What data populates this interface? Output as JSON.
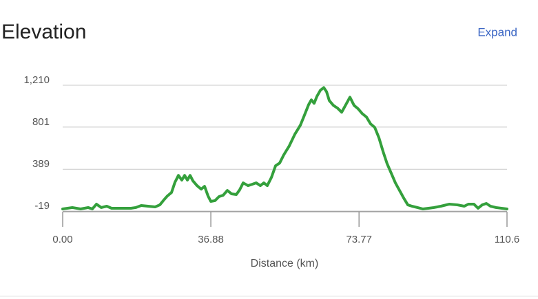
{
  "header": {
    "title": "Elevation",
    "action": "Expand"
  },
  "chart_data": {
    "type": "line",
    "x_label": "Distance (km)",
    "x": [
      0,
      2.4,
      4.46,
      6.34,
      7.37,
      8.4,
      9.6,
      10.97,
      12.17,
      14.4,
      16.98,
      18.18,
      19.55,
      21.26,
      22.98,
      24.18,
      25.03,
      26.06,
      27.09,
      27.95,
      28.81,
      29.66,
      30.35,
      31.04,
      31.72,
      32.41,
      33.44,
      34.47,
      35.32,
      36.18,
      36.87,
      37.9,
      38.92,
      39.95,
      40.98,
      42.01,
      43.21,
      44.07,
      44.93,
      46.13,
      47.16,
      48.18,
      49.21,
      50.07,
      50.93,
      51.96,
      52.99,
      54.01,
      55.04,
      56.41,
      57.79,
      59.16,
      60.19,
      61.22,
      61.9,
      62.59,
      63.27,
      64.13,
      64.99,
      65.68,
      66.36,
      67.39,
      68.42,
      69.45,
      70.48,
      71.5,
      72.53,
      73.56,
      74.59,
      75.62,
      76.65,
      77.68,
      78.71,
      79.74,
      80.76,
      81.79,
      82.82,
      83.85,
      84.88,
      85.91,
      86.94,
      88.31,
      89.68,
      91.05,
      92.42,
      94.14,
      96.2,
      98.25,
      99.97,
      100.99,
      102.37,
      103.4,
      104.43,
      105.46,
      106.48,
      107.86,
      110.6
    ],
    "series": [
      {
        "color": "#34a03c",
        "values": [
          1,
          15,
          1,
          15,
          1,
          48,
          15,
          28,
          8,
          8,
          8,
          15,
          35,
          28,
          21,
          41,
          82,
          128,
          162,
          262,
          329,
          283,
          329,
          283,
          329,
          276,
          229,
          195,
          222,
          128,
          75,
          82,
          122,
          135,
          182,
          149,
          142,
          189,
          256,
          229,
          242,
          256,
          229,
          256,
          229,
          309,
          423,
          450,
          530,
          618,
          731,
          819,
          919,
          1020,
          1067,
          1033,
          1100,
          1160,
          1187,
          1147,
          1060,
          1013,
          986,
          946,
          1020,
          1093,
          1013,
          979,
          932,
          899,
          832,
          798,
          698,
          564,
          443,
          350,
          256,
          182,
          108,
          41,
          28,
          15,
          1,
          8,
          15,
          28,
          48,
          41,
          28,
          48,
          48,
          8,
          41,
          55,
          28,
          15,
          1
        ]
      }
    ],
    "xlim": [
      0,
      110.6
    ],
    "xticks": [
      {
        "value": 0,
        "label": "0.00"
      },
      {
        "value": 36.88,
        "label": "36.88"
      },
      {
        "value": 73.77,
        "label": "73.77"
      },
      110.6
    ],
    "ylim": [
      -19,
      1210
    ],
    "yticks": [
      {
        "value": 1210,
        "label": "1,210"
      },
      801,
      389,
      -19
    ],
    "grid": true
  }
}
